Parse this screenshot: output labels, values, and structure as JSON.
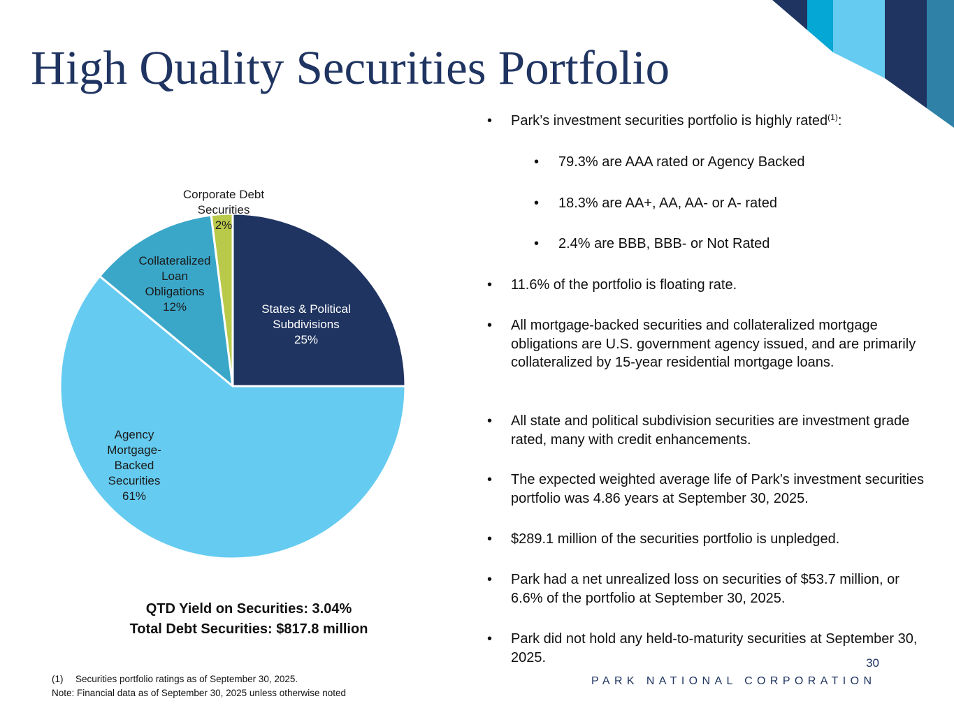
{
  "title": "High Quality Securities Portfolio",
  "colors": {
    "title": "#1f3461",
    "navy": "#1f3461",
    "light_blue": "#65cbf0",
    "teal": "#3aa7c9",
    "lime": "#b9c94a",
    "steel": "#2f81a7",
    "bright_blue": "#05a7d4"
  },
  "chart_data": {
    "type": "pie",
    "title": "",
    "slices": [
      {
        "name": "States & Political Subdivisions",
        "lines": [
          "States & Political",
          "Subdivisions",
          "25%"
        ],
        "value": 25,
        "color": "#1f3461"
      },
      {
        "name": "Agency Mortgage-Backed Securities",
        "lines": [
          "Agency",
          "Mortgage-",
          "Backed",
          "Securities",
          "61%"
        ],
        "value": 61,
        "color": "#65cbf0"
      },
      {
        "name": "Collateralized Loan Obligations",
        "lines": [
          "Collateralized",
          "Loan",
          "Obligations",
          "12%"
        ],
        "value": 12,
        "color": "#3aa7c9"
      },
      {
        "name": "Corporate Debt Securities",
        "lines": [
          "Corporate Debt",
          "Securities",
          "2%"
        ],
        "value": 2,
        "color": "#b9c94a"
      }
    ]
  },
  "summary": {
    "yield": "QTD Yield on Securities: 3.04%",
    "total": "Total Debt Securities: $817.8 million"
  },
  "bullets": [
    {
      "level": 1,
      "text": "Park’s investment securities portfolio is highly rated",
      "sup": "(1)",
      "suffix": ":"
    },
    {
      "level": 2,
      "text": "79.3% are AAA rated or Agency Backed"
    },
    {
      "level": 2,
      "text": "18.3% are AA+, AA, AA- or A- rated"
    },
    {
      "level": 2,
      "text": "2.4% are BBB, BBB- or Not Rated"
    },
    {
      "level": 1,
      "text": "11.6% of the portfolio is floating rate."
    },
    {
      "level": 1,
      "text": "All mortgage-backed securities and collateralized mortgage obligations are U.S. government agency issued, and are primarily collateralized by 15-year residential mortgage loans."
    },
    {
      "level": 1,
      "text": "All state and political subdivision securities are investment grade rated, many with credit enhancements."
    },
    {
      "level": 1,
      "text": "The expected weighted average life of Park’s investment securities portfolio was 4.86 years at September 30, 2025."
    },
    {
      "level": 1,
      "text": "$289.1 million of the securities portfolio is unpledged."
    },
    {
      "level": 1,
      "text": "Park had a net unrealized loss on securities of $53.7 million, or 6.6% of the portfolio at September 30, 2025."
    },
    {
      "level": 1,
      "text": "Park did not hold any held-to-maturity securities at September 30, 2025."
    }
  ],
  "bullet_char": "•",
  "footnotes": {
    "note1_num": "(1)",
    "note1_text": "Securities portfolio ratings as of September 30, 2025.",
    "note2": "Note: Financial data as of September 30, 2025 unless otherwise noted"
  },
  "page_number": "30",
  "brand": "PARK NATIONAL CORPORATION"
}
